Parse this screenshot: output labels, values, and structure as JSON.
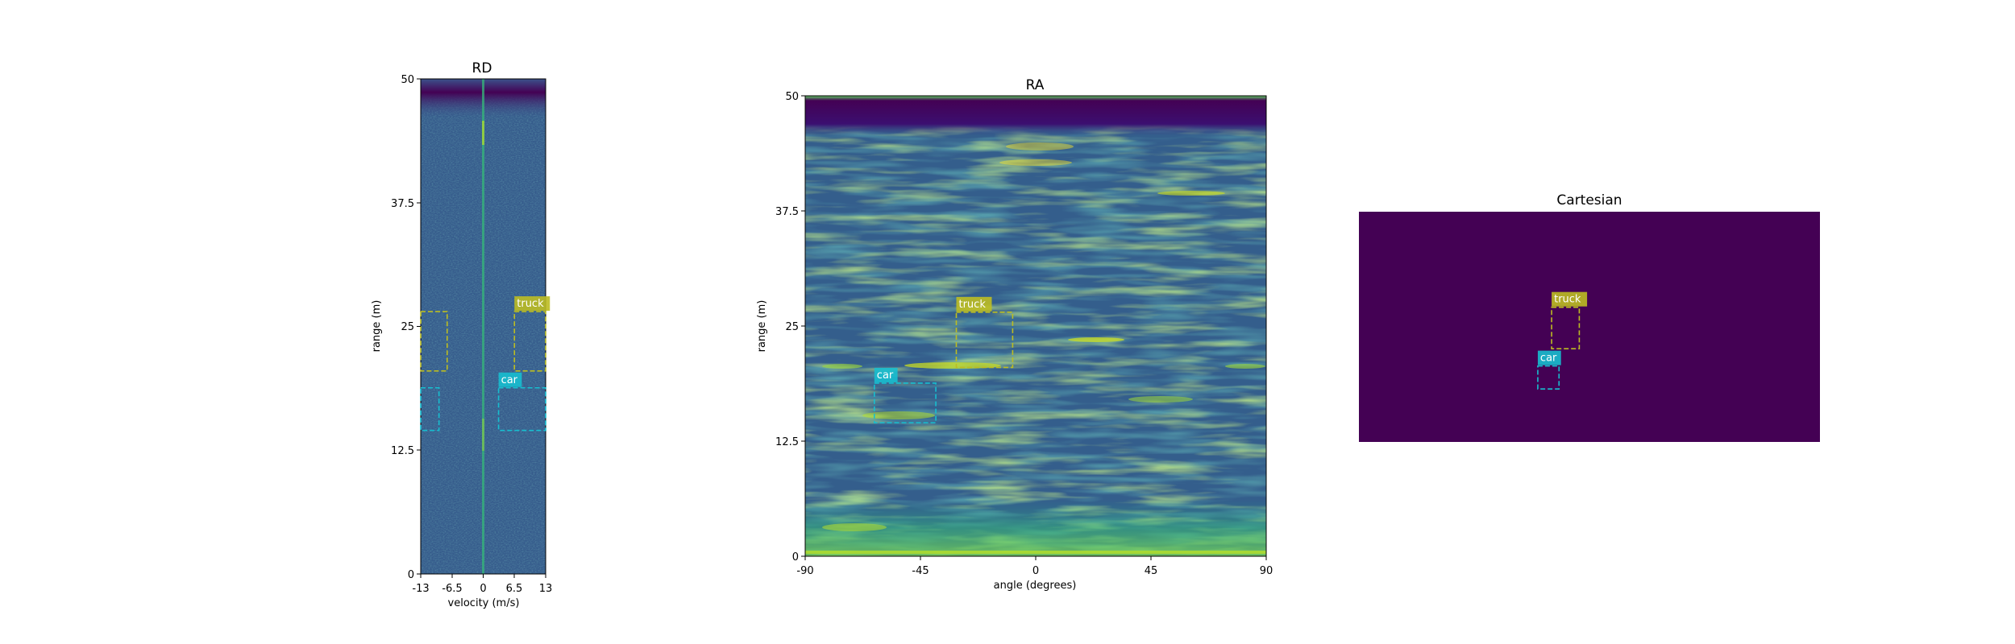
{
  "chart_data": [
    {
      "type": "heatmap",
      "title": "RD",
      "xlabel": "velocity (m/s)",
      "ylabel": "range (m)",
      "xticks": [
        "-13",
        "-6.5",
        "0",
        "6.5",
        "13"
      ],
      "yticks": [
        "0",
        "12.5",
        "25",
        "37.5",
        "50"
      ],
      "xlim": [
        -13,
        13
      ],
      "ylim": [
        0,
        50
      ],
      "colormap": "viridis",
      "boxes": [
        {
          "label": "",
          "color": "#bcbd22",
          "x0": -13,
          "x1": -7.5,
          "y0": 20.5,
          "y1": 26.5
        },
        {
          "label": "truck",
          "color": "#bcbd22",
          "x0": 6.5,
          "x1": 13,
          "y0": 20.5,
          "y1": 26.5
        },
        {
          "label": "",
          "color": "#17becf",
          "x0": -13,
          "x1": -9.2,
          "y0": 14.5,
          "y1": 18.8
        },
        {
          "label": "car",
          "color": "#17becf",
          "x0": 3.2,
          "x1": 13,
          "y0": 14.5,
          "y1": 18.8
        }
      ]
    },
    {
      "type": "heatmap",
      "title": "RA",
      "xlabel": "angle (degrees)",
      "ylabel": "range (m)",
      "xticks": [
        "-90",
        "-45",
        "0",
        "45",
        "90"
      ],
      "yticks": [
        "0",
        "12.5",
        "25",
        "37.5",
        "50"
      ],
      "xlim": [
        -90,
        90
      ],
      "ylim": [
        0,
        50
      ],
      "colormap": "viridis",
      "boxes": [
        {
          "label": "truck",
          "color": "#bcbd22",
          "x0": -31,
          "x1": -9,
          "y0": 20.5,
          "y1": 26.5
        },
        {
          "label": "car",
          "color": "#17becf",
          "x0": -63,
          "x1": -39,
          "y0": 14.5,
          "y1": 18.8
        }
      ]
    },
    {
      "type": "heatmap",
      "title": "Cartesian",
      "background": "#440154",
      "boxes": [
        {
          "label": "truck",
          "color": "#bcbd22",
          "x0": 0.418,
          "x1": 0.478,
          "y0": 0.415,
          "y1": 0.595
        },
        {
          "label": "car",
          "color": "#17becf",
          "x0": 0.388,
          "x1": 0.434,
          "y0": 0.67,
          "y1": 0.77
        }
      ]
    }
  ]
}
